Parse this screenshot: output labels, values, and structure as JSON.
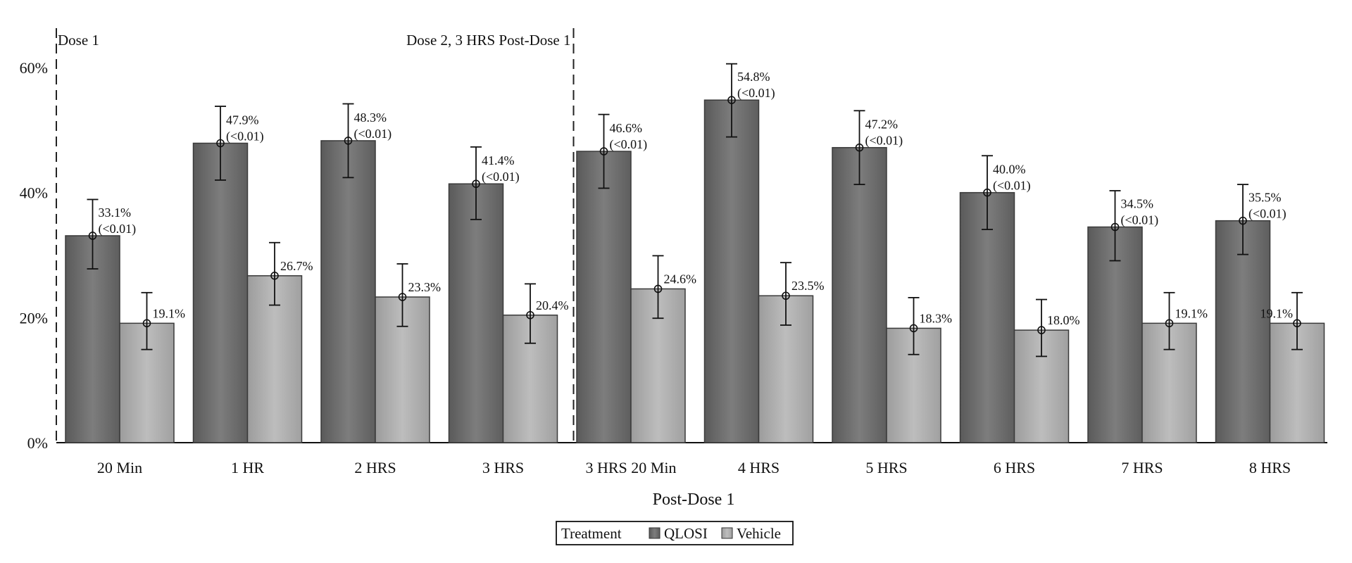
{
  "chart_data": {
    "type": "bar",
    "xlabel": "Post-Dose 1",
    "ylabel": "",
    "ylim": [
      0,
      60
    ],
    "yticks": [
      "0%",
      "20%",
      "40%",
      "60%"
    ],
    "ytick_values": [
      0,
      20,
      40,
      60
    ],
    "grid": false,
    "categories": [
      "20 Min",
      "1 HR",
      "2 HRS",
      "3 HRS",
      "3 HRS 20 Min",
      "4 HRS",
      "5 HRS",
      "6 HRS",
      "7 HRS",
      "8 HRS"
    ],
    "series": [
      {
        "name": "QLOSI",
        "color": "#6e6e6e",
        "values": [
          33.1,
          47.9,
          48.3,
          41.4,
          46.6,
          54.8,
          47.2,
          40.0,
          34.5,
          35.5
        ],
        "error_low": [
          27.8,
          42.0,
          42.4,
          35.7,
          40.7,
          48.9,
          41.3,
          34.1,
          29.1,
          30.1
        ],
        "error_high": [
          38.9,
          53.8,
          54.2,
          47.3,
          52.5,
          60.6,
          53.1,
          45.9,
          40.3,
          41.3
        ],
        "labels": [
          "33.1%",
          "47.9%",
          "48.3%",
          "41.4%",
          "46.6%",
          "54.8%",
          "47.2%",
          "40.0%",
          "34.5%",
          "35.5%"
        ],
        "pvalues": [
          "(<0.01)",
          "(<0.01)",
          "(<0.01)",
          "(<0.01)",
          "(<0.01)",
          "(<0.01)",
          "(<0.01)",
          "(<0.01)",
          "(<0.01)",
          "(<0.01)"
        ]
      },
      {
        "name": "Vehicle",
        "color": "#a9a9a9",
        "values": [
          19.1,
          26.7,
          23.3,
          20.4,
          24.6,
          23.5,
          18.3,
          18.0,
          19.1,
          19.1
        ],
        "error_low": [
          14.9,
          22.0,
          18.6,
          15.9,
          19.9,
          18.8,
          14.1,
          13.8,
          14.9,
          14.9
        ],
        "error_high": [
          24.0,
          32.0,
          28.6,
          25.4,
          29.9,
          28.8,
          23.2,
          22.9,
          24.0,
          24.0
        ],
        "labels": [
          "19.1%",
          "26.7%",
          "23.3%",
          "20.4%",
          "24.6%",
          "23.5%",
          "18.3%",
          "18.0%",
          "19.1%",
          "19.1%"
        ]
      }
    ],
    "annotations": [
      "Dose 1",
      "Dose 2, 3 HRS Post-Dose 1"
    ],
    "legend": {
      "title": "Treatment",
      "placement": "bottom-center"
    }
  }
}
